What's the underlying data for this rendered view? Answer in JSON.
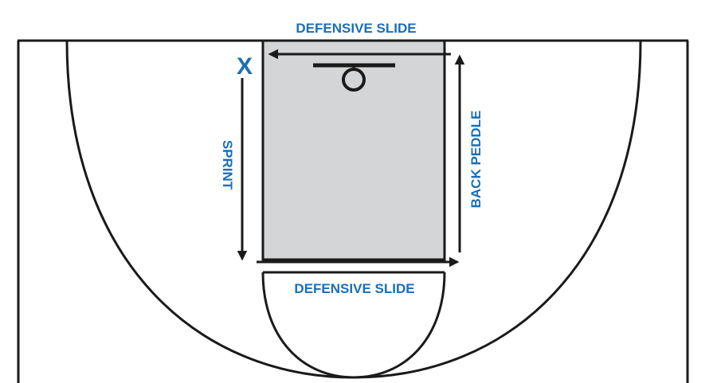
{
  "colors": {
    "label": "#1a6fb8",
    "line": "#1a1a1a",
    "lane_fill": "#d4d5d7",
    "background": "#ffffff"
  },
  "labels": {
    "top_slide": "DEFENSIVE SLIDE",
    "bottom_slide": "DEFENSIVE SLIDE",
    "sprint": "SPRINT",
    "back_peddle": "BACK PEDDLE"
  },
  "player": {
    "marker": "X"
  }
}
